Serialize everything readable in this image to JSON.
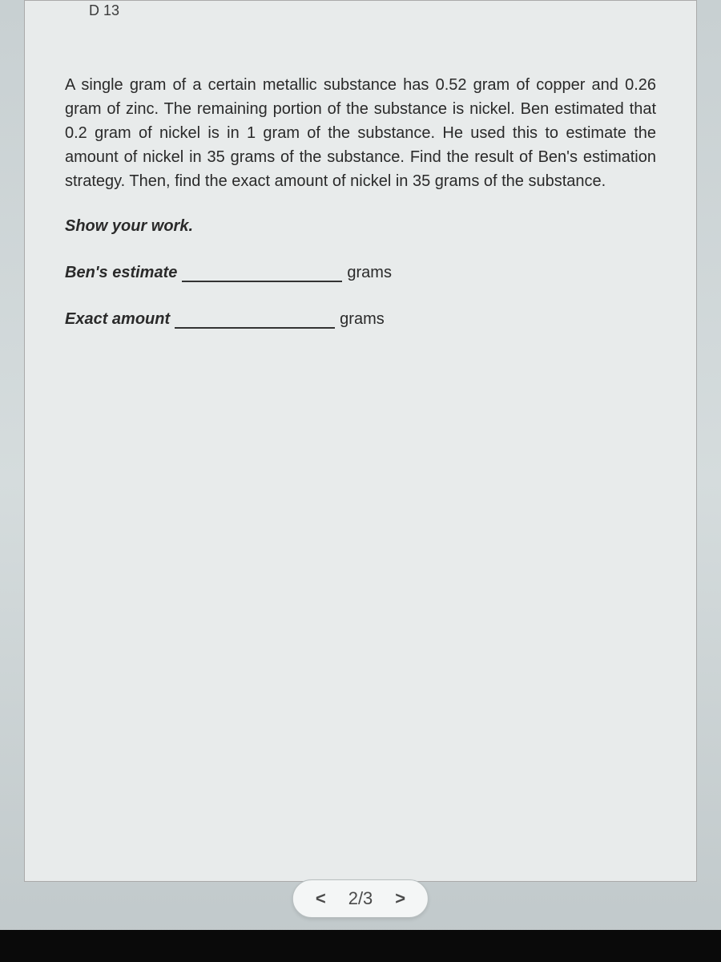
{
  "top_marker": "D  13",
  "question": "A single gram of a certain metallic substance has 0.52 gram of copper and 0.26 gram of zinc. The remaining portion of the substance is nickel. Ben estimated that 0.2 gram of nickel is in 1 gram of the substance. He used this to estimate the amount of nickel in 35 grams of the substance. Find the result of Ben's estimation strategy. Then, find the exact amount of nickel in 35 grams of the substance.",
  "show_work": "Show your work.",
  "answers": {
    "estimate_label": "Ben's estimate",
    "exact_label": "Exact amount",
    "unit": "grams"
  },
  "pager": {
    "prev": "<",
    "page": "2/3",
    "next": ">"
  },
  "colors": {
    "page_bg": "#e8ebeb",
    "text": "#2a2a2a",
    "pager_bg": "#f4f6f6",
    "pager_border": "#b8bfc0",
    "bottom_bar": "#0a0a0a"
  },
  "typography": {
    "body_fontsize": 20,
    "pager_fontsize": 22
  }
}
